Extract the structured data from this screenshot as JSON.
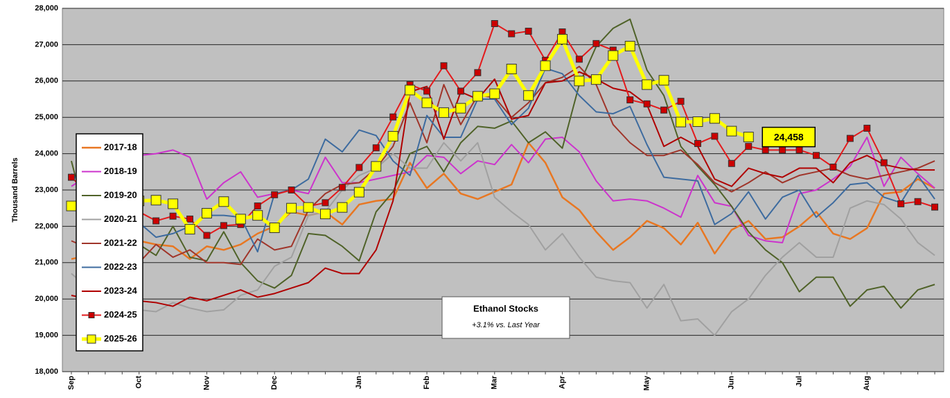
{
  "chart_data": {
    "type": "line",
    "y_label": "Thousand Barrels",
    "annotation": {
      "title": "Ethanol Stocks",
      "subtitle": "+3.1% vs. Last Year"
    },
    "legend": "left",
    "grid": true,
    "ylim": [
      18000,
      28000
    ],
    "yticks": [
      {
        "value": 18000,
        "label": "18,000"
      },
      {
        "value": 19000,
        "label": "19,000"
      },
      {
        "value": 20000,
        "label": "20,000"
      },
      {
        "value": 21000,
        "label": "21,000"
      },
      {
        "value": 22000,
        "label": "22,000"
      },
      {
        "value": 23000,
        "label": "23,000"
      },
      {
        "value": 24000,
        "label": "24,000"
      },
      {
        "value": 25000,
        "label": "25,000"
      },
      {
        "value": 26000,
        "label": "26,000"
      },
      {
        "value": 27000,
        "label": "27,000"
      },
      {
        "value": 28000,
        "label": "28,000"
      }
    ],
    "categories": [
      "Sep",
      null,
      null,
      null,
      "Oct",
      null,
      null,
      null,
      "Nov",
      null,
      null,
      null,
      "Dec",
      null,
      null,
      null,
      null,
      "Jan",
      null,
      null,
      null,
      "Feb",
      null,
      null,
      null,
      "Mar",
      null,
      null,
      null,
      "Apr",
      null,
      null,
      null,
      null,
      "May",
      null,
      null,
      null,
      null,
      "Jun",
      null,
      null,
      null,
      "Jul",
      null,
      null,
      null,
      "Aug",
      null,
      null,
      null,
      null
    ],
    "series": [
      {
        "name": "2017-18",
        "color": "#e87722",
        "line_width": 2.5,
        "values": [
          21100,
          21200,
          21400,
          21500,
          21600,
          21500,
          21450,
          21100,
          21450,
          21350,
          21500,
          21800,
          22000,
          22400,
          22300,
          22400,
          22050,
          22600,
          22700,
          22750,
          23750,
          23050,
          23450,
          22900,
          22750,
          22950,
          23150,
          24300,
          23750,
          22800,
          22450,
          21850,
          21350,
          21700,
          22150,
          21950,
          21500,
          22100,
          21250,
          21900,
          22150,
          21650,
          21700,
          22000,
          22400,
          21800,
          21650,
          21950,
          22900,
          22950,
          23300,
          23050
        ]
      },
      {
        "name": "2018-19",
        "color": "#cc33cc",
        "line_width": 2,
        "values": [
          23100,
          23400,
          23700,
          23900,
          23950,
          24000,
          24100,
          23900,
          22750,
          23200,
          23500,
          22800,
          22900,
          23000,
          22900,
          23900,
          23200,
          23200,
          23300,
          23400,
          23500,
          23950,
          23900,
          23450,
          23800,
          23700,
          24250,
          23750,
          24400,
          24450,
          24050,
          23250,
          22700,
          22750,
          22700,
          22500,
          22250,
          23400,
          22650,
          22550,
          21750,
          21600,
          21550,
          22900,
          23000,
          23300,
          23650,
          24450,
          23100,
          23900,
          23450,
          23050
        ]
      },
      {
        "name": "2019-20",
        "color": "#4f6228",
        "line_width": 2,
        "values": [
          23800,
          22000,
          21700,
          21400,
          21500,
          21200,
          22000,
          21150,
          21050,
          21850,
          21000,
          20500,
          20300,
          20650,
          21800,
          21750,
          21450,
          21050,
          22400,
          22950,
          24000,
          24200,
          23500,
          24300,
          24750,
          24700,
          24900,
          24300,
          24600,
          24150,
          25900,
          26950,
          27450,
          27700,
          26300,
          25600,
          24200,
          23650,
          23150,
          22550,
          21850,
          21350,
          21000,
          20200,
          20600,
          20600,
          19800,
          20250,
          20350,
          19750,
          20250,
          20400
        ]
      },
      {
        "name": "2020-21",
        "color": "#a0a0a0",
        "line_width": 2,
        "values": [
          20700,
          20300,
          20000,
          19800,
          19700,
          19650,
          19900,
          19750,
          19650,
          19700,
          20100,
          20250,
          20900,
          21150,
          22300,
          22400,
          23000,
          23400,
          23600,
          24000,
          23600,
          23600,
          24300,
          23800,
          24300,
          22800,
          22400,
          22050,
          21350,
          21800,
          21150,
          20600,
          20500,
          20450,
          19750,
          20400,
          19400,
          19450,
          19000,
          19650,
          20000,
          20650,
          21150,
          21550,
          21150,
          21150,
          22500,
          22700,
          22600,
          22200,
          21550,
          21200
        ]
      },
      {
        "name": "2021-22",
        "color": "#a0352a",
        "line_width": 2,
        "values": [
          21600,
          21400,
          21250,
          21100,
          21000,
          21500,
          21150,
          21350,
          21000,
          21000,
          20950,
          21650,
          21350,
          21450,
          22450,
          22900,
          23150,
          23200,
          23600,
          24200,
          25400,
          24300,
          25900,
          24800,
          25600,
          25550,
          25000,
          25400,
          25950,
          26100,
          26400,
          25900,
          24800,
          24300,
          23950,
          23950,
          24100,
          23700,
          23200,
          22950,
          23200,
          23500,
          23200,
          23400,
          23500,
          23600,
          23400,
          23300,
          23400,
          23500,
          23600,
          23800
        ]
      },
      {
        "name": "2022-23",
        "color": "#3d6b9f",
        "line_width": 2,
        "values": [
          23450,
          23000,
          22500,
          22300,
          22100,
          21700,
          21800,
          22000,
          22300,
          22300,
          22250,
          21300,
          22900,
          23000,
          23300,
          24400,
          24050,
          24650,
          24500,
          23800,
          23400,
          25050,
          24450,
          24450,
          25500,
          25500,
          24800,
          25250,
          26350,
          26200,
          25600,
          25150,
          25100,
          25300,
          24250,
          23350,
          23300,
          23250,
          22050,
          22350,
          22950,
          22200,
          22800,
          23000,
          22250,
          22650,
          23150,
          23200,
          22800,
          22650,
          23400,
          22750
        ]
      },
      {
        "name": "2023-24",
        "color": "#b00000",
        "line_width": 2,
        "values": [
          20100,
          20000,
          19950,
          19900,
          19950,
          19900,
          19800,
          20050,
          19950,
          20100,
          20250,
          20050,
          20150,
          20300,
          20450,
          20850,
          20700,
          20700,
          21350,
          22700,
          25700,
          25850,
          24400,
          25700,
          25500,
          26050,
          24950,
          25050,
          25950,
          26000,
          26250,
          26050,
          25800,
          25700,
          25350,
          24200,
          24450,
          24200,
          23300,
          23100,
          23600,
          23450,
          23350,
          23600,
          23600,
          23200,
          23750,
          23950,
          23700,
          23600,
          23550,
          23550
        ]
      },
      {
        "name": "2024-25",
        "color": "#e31a1c",
        "line_width": 2,
        "marker": "square",
        "marker_color": "#cc0000",
        "values": [
          23350,
          22900,
          22800,
          22600,
          22400,
          22150,
          22280,
          22200,
          21750,
          22020,
          22050,
          22560,
          22870,
          23000,
          22550,
          22650,
          23070,
          23620,
          24160,
          25010,
          25900,
          25720,
          26420,
          25720,
          26230,
          27580,
          27300,
          27370,
          26570,
          27350,
          26600,
          27030,
          26850,
          25480,
          25370,
          25200,
          25440,
          24280,
          24480,
          23730,
          24200,
          24100,
          24100,
          24100,
          23950,
          23630,
          24420,
          24700,
          23750,
          22620,
          22680,
          22530
        ]
      },
      {
        "name": "2025-26",
        "color": "#ffff00",
        "line_width": 5,
        "marker": "square",
        "marker_color": "#ffff00",
        "values": [
          22560,
          22700,
          22800,
          22750,
          22700,
          22720,
          22620,
          21920,
          22360,
          22680,
          22200,
          22300,
          21960,
          22500,
          22520,
          22340,
          22520,
          22940,
          23650,
          24480,
          25750,
          25400,
          25130,
          25250,
          25580,
          25650,
          26330,
          25600,
          26420,
          27150,
          26000,
          26040,
          26700,
          26960,
          25900,
          26020,
          24870,
          24880,
          24970,
          24620,
          24458,
          null,
          null,
          null,
          null,
          null,
          null,
          null,
          null,
          null,
          null,
          null
        ],
        "value_labels": [
          null,
          null,
          null,
          null,
          null,
          null,
          null,
          null,
          null,
          null,
          null,
          null,
          null,
          null,
          null,
          null,
          null,
          null,
          null,
          null,
          null,
          null,
          null,
          null,
          null,
          null,
          null,
          null,
          null,
          null,
          null,
          null,
          null,
          null,
          null,
          null,
          null,
          null,
          null,
          null,
          "24,458",
          null,
          null,
          null,
          null,
          null,
          null,
          null,
          null,
          null,
          null,
          null
        ]
      }
    ]
  }
}
